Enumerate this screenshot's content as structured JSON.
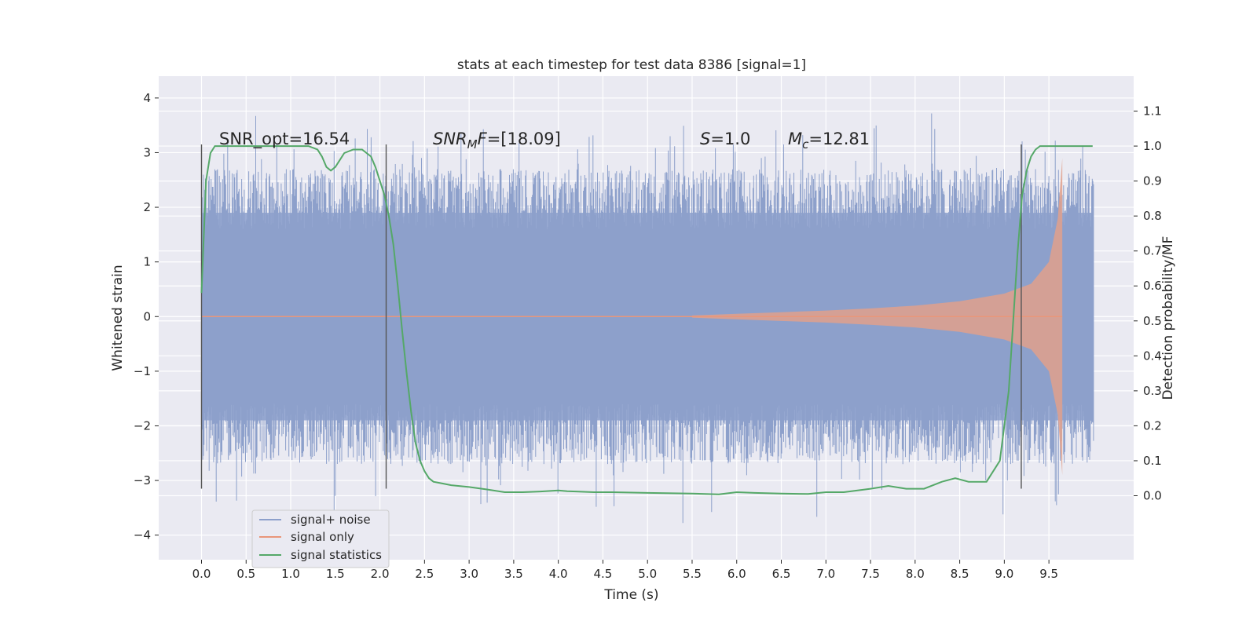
{
  "chart_data": {
    "type": "line",
    "title": "stats at each timestep for test data 8386 [signal=1]",
    "xlabel": "Time (s)",
    "ylabel": "Whitened strain",
    "y2label": "Detection probability/MF",
    "xlim": [
      -0.48,
      10.45
    ],
    "ylim": [
      -4.45,
      4.4
    ],
    "y2lim": [
      -0.183,
      1.2
    ],
    "x_ticks": [
      0.0,
      0.5,
      1.0,
      1.5,
      2.0,
      2.5,
      3.0,
      3.5,
      4.0,
      4.5,
      5.0,
      5.5,
      6.0,
      6.5,
      7.0,
      7.5,
      8.0,
      8.5,
      9.0,
      9.5
    ],
    "x_tick_labels": [
      "0.0",
      "0.5",
      "1.0",
      "1.5",
      "2.0",
      "2.5",
      "3.0",
      "3.5",
      "4.0",
      "4.5",
      "5.0",
      "5.5",
      "6.0",
      "6.5",
      "7.0",
      "7.5",
      "8.0",
      "8.5",
      "9.0",
      "9.5"
    ],
    "y_ticks": [
      -4,
      -3,
      -2,
      -1,
      0,
      1,
      2,
      3,
      4
    ],
    "y_tick_labels": [
      "−4",
      "−3",
      "−2",
      "−1",
      "0",
      "1",
      "2",
      "3",
      "4"
    ],
    "y2_ticks": [
      0.0,
      0.1,
      0.2,
      0.3,
      0.4,
      0.5,
      0.6,
      0.7,
      0.8,
      0.9,
      1.0,
      1.1
    ],
    "y2_tick_labels": [
      "0.0",
      "0.1",
      "0.2",
      "0.3",
      "0.4",
      "0.5",
      "0.6",
      "0.7",
      "0.8",
      "0.9",
      "1.0",
      "1.1"
    ],
    "grid": true,
    "legend_position": "lower-left",
    "annotations": {
      "snr_opt": "SNR_opt=16.54",
      "snr_mf": "=[18.09]",
      "s": "=1.0",
      "mc": "=12.81"
    },
    "vertical_markers": [
      0.0,
      2.07,
      9.19
    ],
    "noisy_band": {
      "x_start": 0.0,
      "x_end": 10.0,
      "envelope_upper": 1.9,
      "envelope_lower": -1.9,
      "peak_max": 4.02,
      "peak_min": -4.05
    },
    "series": [
      {
        "name": "signal+ noise",
        "color": "#8da0cb",
        "values_summary": "dense noise approx within [-2, 2], spikes up to 4.02 and down to -4.05"
      },
      {
        "name": "signal only",
        "color": "#e9967a",
        "x": [
          5.5,
          6.0,
          6.5,
          7.0,
          7.5,
          8.0,
          8.5,
          9.0,
          9.3,
          9.5,
          9.6,
          9.65
        ],
        "amplitude": [
          0.02,
          0.05,
          0.08,
          0.11,
          0.15,
          0.2,
          0.28,
          0.42,
          0.6,
          1.0,
          1.8,
          2.9
        ]
      },
      {
        "name": "signal statistics",
        "color": "#55a868",
        "x": [
          0.0,
          0.05,
          0.1,
          0.15,
          0.2,
          0.4,
          0.6,
          0.8,
          1.0,
          1.1,
          1.2,
          1.3,
          1.35,
          1.4,
          1.45,
          1.5,
          1.55,
          1.6,
          1.7,
          1.8,
          1.9,
          1.95,
          2.0,
          2.05,
          2.1,
          2.15,
          2.2,
          2.25,
          2.3,
          2.35,
          2.4,
          2.45,
          2.5,
          2.55,
          2.6,
          2.7,
          2.8,
          3.0,
          3.2,
          3.4,
          3.6,
          3.8,
          4.0,
          4.1,
          4.2,
          4.4,
          4.6,
          5.0,
          5.5,
          5.8,
          6.0,
          6.2,
          6.5,
          6.8,
          7.0,
          7.2,
          7.5,
          7.7,
          7.9,
          8.1,
          8.3,
          8.45,
          8.6,
          8.8,
          8.95,
          9.05,
          9.1,
          9.15,
          9.2,
          9.25,
          9.3,
          9.35,
          9.4,
          9.5,
          9.7,
          9.99
        ],
        "values": [
          0.58,
          0.9,
          0.98,
          1.0,
          1.0,
          1.0,
          1.0,
          1.0,
          1.0,
          1.0,
          1.0,
          0.99,
          0.97,
          0.94,
          0.93,
          0.94,
          0.96,
          0.98,
          0.99,
          0.99,
          0.97,
          0.94,
          0.9,
          0.86,
          0.8,
          0.72,
          0.6,
          0.47,
          0.35,
          0.24,
          0.15,
          0.1,
          0.07,
          0.05,
          0.04,
          0.035,
          0.03,
          0.025,
          0.018,
          0.01,
          0.01,
          0.012,
          0.015,
          0.013,
          0.012,
          0.01,
          0.01,
          0.008,
          0.006,
          0.004,
          0.01,
          0.008,
          0.006,
          0.005,
          0.01,
          0.01,
          0.02,
          0.028,
          0.02,
          0.02,
          0.04,
          0.05,
          0.04,
          0.04,
          0.1,
          0.3,
          0.5,
          0.7,
          0.86,
          0.93,
          0.97,
          0.99,
          1.0,
          1.0,
          1.0,
          1.0
        ]
      }
    ]
  }
}
